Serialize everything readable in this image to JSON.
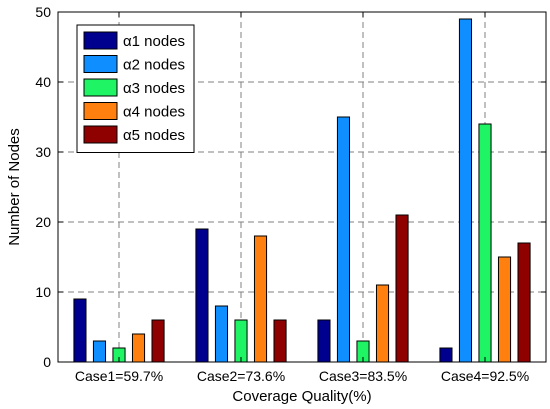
{
  "chart_data": {
    "type": "bar",
    "title": "",
    "xlabel": "Coverage Quality(%)",
    "ylabel": "Number of Nodes",
    "categories": [
      "Case1=59.7%",
      "Case2=73.6%",
      "Case3=83.5%",
      "Case4=92.5%"
    ],
    "ylim": [
      0,
      50
    ],
    "yticks": [
      0,
      10,
      20,
      30,
      40,
      50
    ],
    "grid": true,
    "legend_position": "top-left",
    "series": [
      {
        "name": "α1 nodes",
        "color": "#00008f",
        "values": [
          9,
          19,
          6,
          2
        ]
      },
      {
        "name": "α2 nodes",
        "color": "#0f8fff",
        "values": [
          3,
          8,
          35,
          49
        ]
      },
      {
        "name": "α3 nodes",
        "color": "#1ff564",
        "values": [
          2,
          6,
          3,
          34
        ]
      },
      {
        "name": "α4 nodes",
        "color": "#ff7f0f",
        "values": [
          4,
          18,
          11,
          15
        ]
      },
      {
        "name": "α5 nodes",
        "color": "#8f0000",
        "values": [
          6,
          6,
          21,
          17
        ]
      }
    ]
  }
}
